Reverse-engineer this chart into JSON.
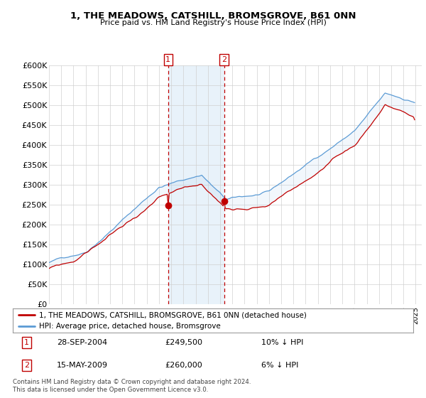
{
  "title": "1, THE MEADOWS, CATSHILL, BROMSGROVE, B61 0NN",
  "subtitle": "Price paid vs. HM Land Registry's House Price Index (HPI)",
  "ylim": [
    0,
    600000
  ],
  "yticks": [
    0,
    50000,
    100000,
    150000,
    200000,
    250000,
    300000,
    350000,
    400000,
    450000,
    500000,
    550000,
    600000
  ],
  "ytick_labels": [
    "£0",
    "£50K",
    "£100K",
    "£150K",
    "£200K",
    "£250K",
    "£300K",
    "£350K",
    "£400K",
    "£450K",
    "£500K",
    "£550K",
    "£600K"
  ],
  "hpi_color": "#5b9bd5",
  "price_color": "#c00000",
  "vline_color": "#c00000",
  "shade_color": "#daeaf8",
  "legend_line1": "1, THE MEADOWS, CATSHILL, BROMSGROVE, B61 0NN (detached house)",
  "legend_line2": "HPI: Average price, detached house, Bromsgrove",
  "table_row1": [
    "1",
    "28-SEP-2004",
    "£249,500",
    "10% ↓ HPI"
  ],
  "table_row2": [
    "2",
    "15-MAY-2009",
    "£260,000",
    "6% ↓ HPI"
  ],
  "footer": "Contains HM Land Registry data © Crown copyright and database right 2024.\nThis data is licensed under the Open Government Licence v3.0.",
  "bg_color": "#ffffff",
  "grid_color": "#d0d0d0",
  "marker1_year": 2004.75,
  "marker2_year": 2009.37,
  "marker1_price": 249500,
  "marker2_price": 260000
}
